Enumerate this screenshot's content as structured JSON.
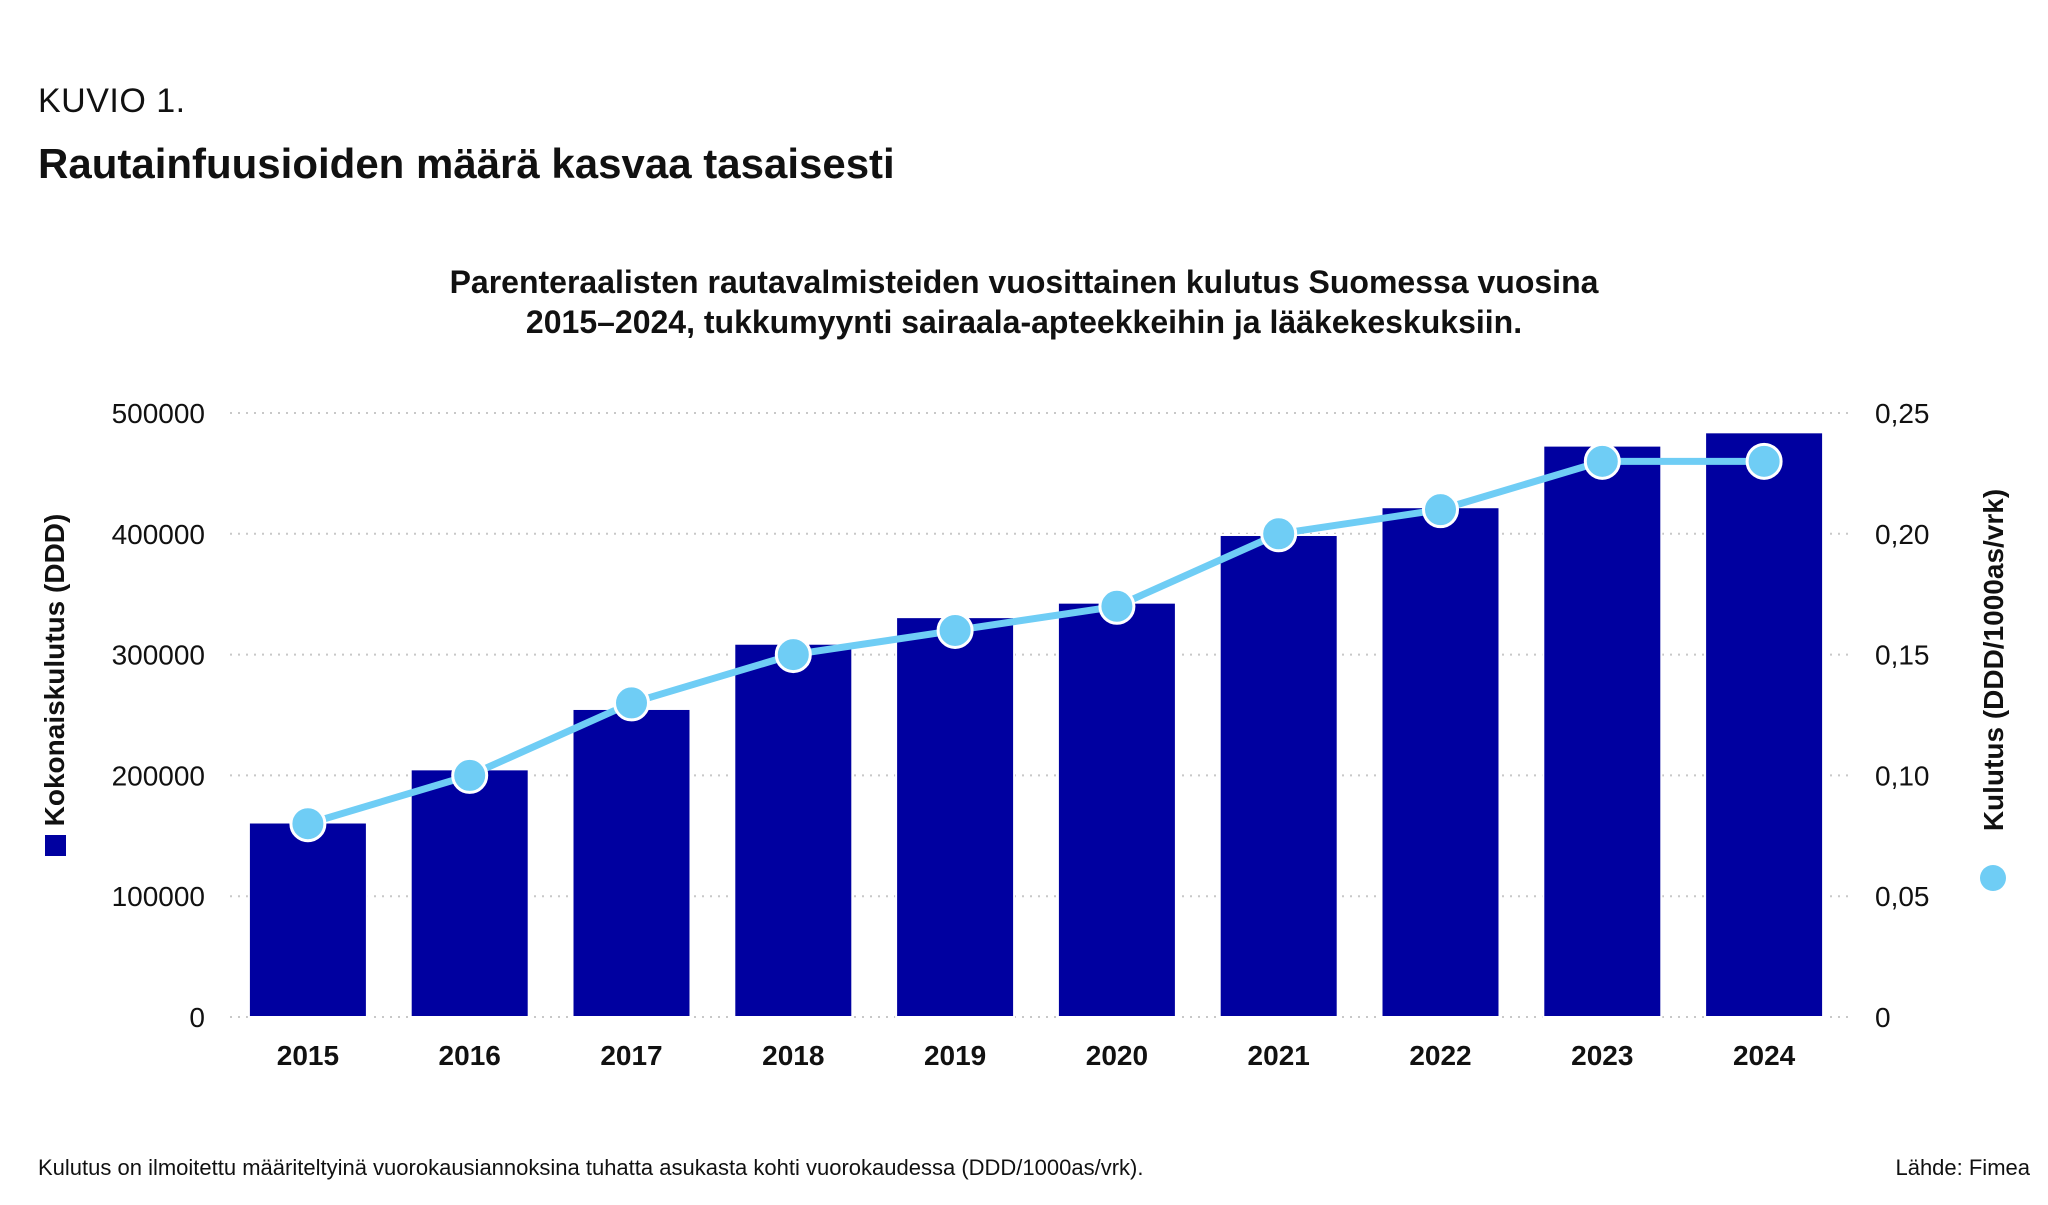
{
  "header": {
    "label": "KUVIO 1.",
    "title": "Rautainfuusioiden määrä kasvaa tasaisesti"
  },
  "footer": {
    "note": "Kulutus on ilmoitettu määriteltyinä vuorokausiannoksina tuhatta asukasta kohti vuorokaudessa (DDD/1000as/vrk).",
    "source": "Lähde: Fimea"
  },
  "chart_data": {
    "type": "bar",
    "title_lines": [
      "Parenteraalisten rautavalmisteiden vuosittainen kulutus Suomessa vuosina",
      "2015–2024, tukkumyynti sairaala-apteekkeihin ja lääkekeskuksiin."
    ],
    "categories": [
      "2015",
      "2016",
      "2017",
      "2018",
      "2019",
      "2020",
      "2021",
      "2022",
      "2023",
      "2024"
    ],
    "series": [
      {
        "name": "Kokonaiskulutus (DDD)",
        "type": "bar",
        "axis": "left",
        "color": "#0000a0",
        "values": [
          161000,
          205000,
          255000,
          309000,
          331000,
          343000,
          399000,
          422000,
          473000,
          484000
        ]
      },
      {
        "name": "Kulutus (DDD/1000as/vrk)",
        "type": "line",
        "axis": "right",
        "color": "#6fcdf5",
        "values": [
          0.08,
          0.1,
          0.13,
          0.15,
          0.16,
          0.17,
          0.2,
          0.21,
          0.23,
          0.23
        ]
      }
    ],
    "y_left": {
      "label": "Kokonaiskulutus (DDD)",
      "range": [
        0,
        500000
      ],
      "ticks": [
        "0",
        "100000",
        "200000",
        "300000",
        "400000",
        "500000"
      ]
    },
    "y_right": {
      "label": "Kulutus (DDD/1000as/vrk)",
      "range": [
        0,
        0.25
      ],
      "ticks": [
        "0",
        "0,05",
        "0,10",
        "0,15",
        "0,20",
        "0,25"
      ]
    },
    "grid": true,
    "legend": "axis-labels"
  }
}
